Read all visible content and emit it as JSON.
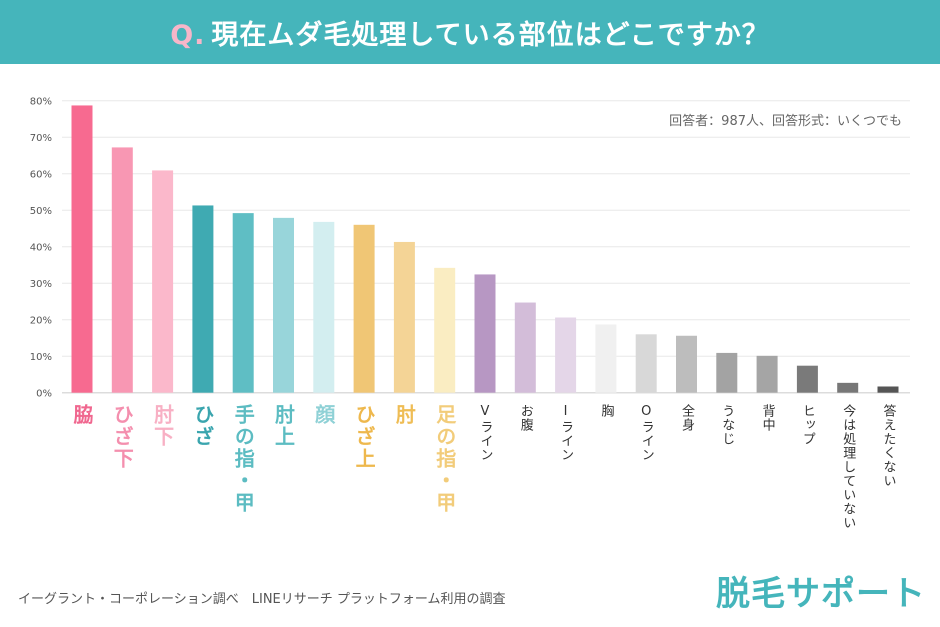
{
  "header": {
    "q": "Q.",
    "title": "現在ムダ毛処理している部位はどこですか？",
    "bg_color": "#45b5bb"
  },
  "note": "回答者：987人、回答形式：いくつでも",
  "source": "イーグラント・コーポレーション調べ　LINEリサーチ プラットフォーム利用の調査",
  "logo": "脱毛サポート",
  "chart_data": {
    "type": "bar",
    "categories": [
      "脇",
      "ひざ下",
      "肘下",
      "ひざ",
      "手の指・甲",
      "肘上",
      "顔",
      "ひざ上",
      "肘",
      "足の指・甲",
      "Vライン",
      "お腹",
      "Iライン",
      "胸",
      "Oライン",
      "全身",
      "うなじ",
      "背中",
      "ヒップ",
      "今は処理していない",
      "答えたくない"
    ],
    "values": [
      78.7,
      67.2,
      60.9,
      51.3,
      49.2,
      47.9,
      46.8,
      46.0,
      41.3,
      34.2,
      32.4,
      24.7,
      20.6,
      18.7,
      16.0,
      15.6,
      10.9,
      10.1,
      7.4,
      2.7,
      1.7
    ],
    "unit": "%",
    "colors": [
      "#f76a90",
      "#f897b3",
      "#fbb8cb",
      "#3faab2",
      "#5fbec4",
      "#98d5da",
      "#d3eef0",
      "#f0c675",
      "#f4d496",
      "#faedc2",
      "#b797c3",
      "#d3bdd9",
      "#e4d6e8",
      "#f0f0f0",
      "#d8d8d8",
      "#bdbdbd",
      "#a3a3a3",
      "#a5a5a5",
      "#7a7a7a",
      "#777777",
      "#555555"
    ],
    "label_colors": [
      "#f0678f",
      "#f48fae",
      "#f8b0c4",
      "#3aa5ae",
      "#5cbcc2",
      "#5cbcc2",
      "#8fd1d6",
      "#eeb84d",
      "#efbd55",
      "#f2cc7a"
    ],
    "ylim": [
      0,
      80
    ],
    "yticks": [
      "0%",
      "10%",
      "20%",
      "30%",
      "40%",
      "50%",
      "60%",
      "70%",
      "80%"
    ],
    "grid": true,
    "xlabel": "",
    "ylabel": ""
  }
}
